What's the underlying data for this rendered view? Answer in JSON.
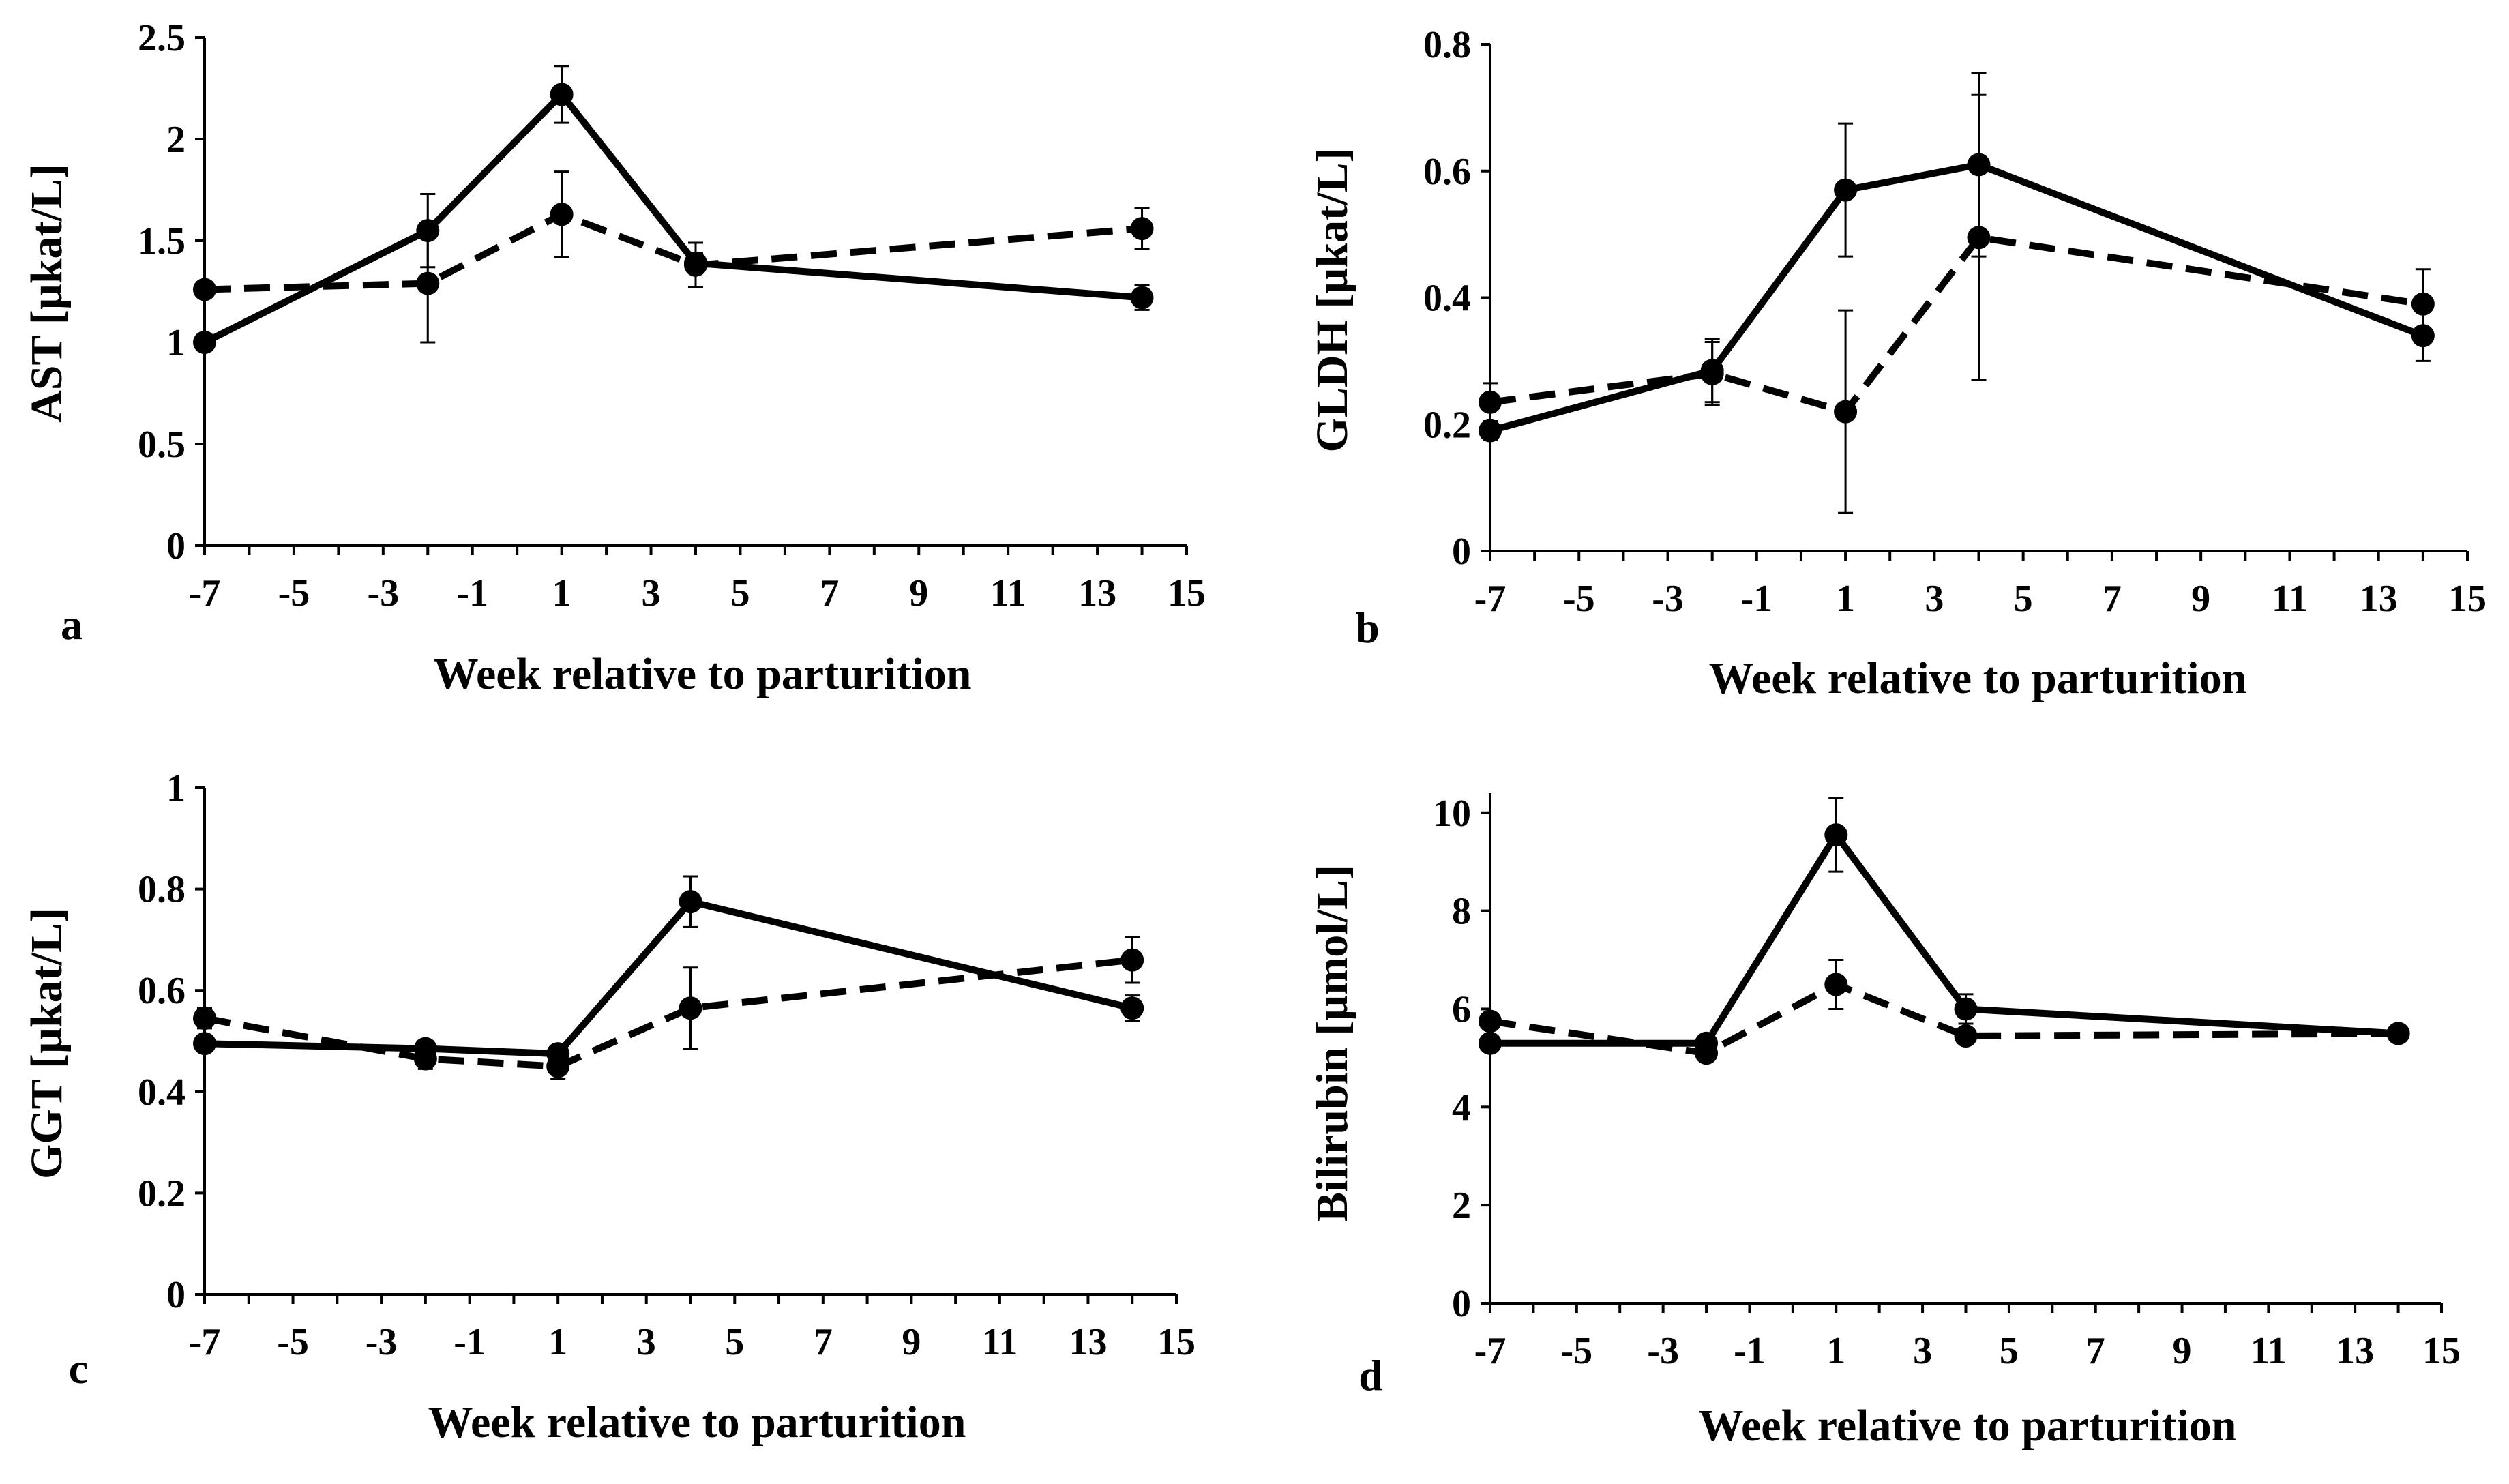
{
  "figure": {
    "xlabel": "Week relative to parturition",
    "xticks": [
      "-7",
      "-5",
      "-3",
      "-1",
      "1",
      "3",
      "5",
      "7",
      "9",
      "11",
      "13",
      "15"
    ]
  },
  "chart_data": [
    {
      "type": "line",
      "panel": "a",
      "ylabel": "AST [µkat/L]",
      "xlabel": "Week relative to parturition",
      "xlim": [
        -7,
        15
      ],
      "ylim": [
        0,
        2.5
      ],
      "yticks": [
        "0",
        "0.5",
        "1",
        "1.5",
        "2",
        "2.5"
      ],
      "x": [
        -7,
        -2,
        1,
        4,
        14
      ],
      "series": [
        {
          "name": "solid",
          "style": "solid",
          "values": [
            1.0,
            1.55,
            2.22,
            1.39,
            1.22
          ],
          "errors": [
            0.04,
            0.18,
            0.14,
            0.05,
            0.06
          ]
        },
        {
          "name": "dashed",
          "style": "dashed",
          "values": [
            1.26,
            1.29,
            1.63,
            1.38,
            1.56
          ],
          "errors": [
            0.03,
            0.29,
            0.21,
            0.11,
            0.1
          ]
        }
      ]
    },
    {
      "type": "line",
      "panel": "b",
      "ylabel": "GLDH [µkat/L]",
      "xlabel": "Week relative to parturition",
      "xlim": [
        -7,
        15
      ],
      "ylim": [
        0,
        0.8
      ],
      "yticks": [
        "0",
        "0.2",
        "0.4",
        "0.6",
        "0.8"
      ],
      "x": [
        -7,
        -2,
        1,
        4,
        14
      ],
      "series": [
        {
          "name": "solid",
          "style": "solid",
          "values": [
            0.19,
            0.285,
            0.57,
            0.61,
            0.34
          ],
          "errors": [
            0.015,
            0.05,
            0.105,
            0.145,
            0.04
          ]
        },
        {
          "name": "dashed",
          "style": "dashed",
          "values": [
            0.235,
            0.28,
            0.22,
            0.495,
            0.39
          ],
          "errors": [
            0.03,
            0.05,
            0.16,
            0.225,
            0.055
          ]
        }
      ]
    },
    {
      "type": "line",
      "panel": "c",
      "ylabel": "GGT [µkat/L]",
      "xlabel": "Week relative to parturition",
      "xlim": [
        -7,
        15
      ],
      "ylim": [
        0,
        1
      ],
      "yticks": [
        "0",
        "0.2",
        "0.4",
        "0.6",
        "0.8",
        "1"
      ],
      "x": [
        -7,
        -2,
        1,
        4,
        14
      ],
      "series": [
        {
          "name": "solid",
          "style": "solid",
          "values": [
            0.495,
            0.485,
            0.475,
            0.775,
            0.565
          ],
          "errors": [
            0.015,
            0.015,
            0.015,
            0.05,
            0.025
          ]
        },
        {
          "name": "dashed",
          "style": "dashed",
          "values": [
            0.545,
            0.465,
            0.45,
            0.565,
            0.66
          ],
          "errors": [
            0.02,
            0.02,
            0.025,
            0.08,
            0.045
          ]
        }
      ]
    },
    {
      "type": "line",
      "panel": "d",
      "ylabel": "Bilirubin [µmol/L]",
      "xlabel": "Week relative to parturition",
      "xlim": [
        -7,
        15
      ],
      "ylim": [
        0,
        10.4
      ],
      "yticks": [
        "0",
        "2",
        "4",
        "6",
        "8",
        "10"
      ],
      "x": [
        -7,
        -2,
        1,
        4,
        14
      ],
      "series": [
        {
          "name": "solid",
          "style": "solid",
          "values": [
            5.3,
            5.3,
            9.55,
            6.0,
            5.5
          ],
          "errors": [
            0.1,
            0.1,
            0.75,
            0.3,
            0.1
          ]
        },
        {
          "name": "dashed",
          "style": "dashed",
          "values": [
            5.75,
            5.1,
            6.5,
            5.45,
            5.5
          ],
          "errors": [
            0.1,
            0.15,
            0.5,
            0.15,
            0.1
          ]
        }
      ]
    }
  ]
}
